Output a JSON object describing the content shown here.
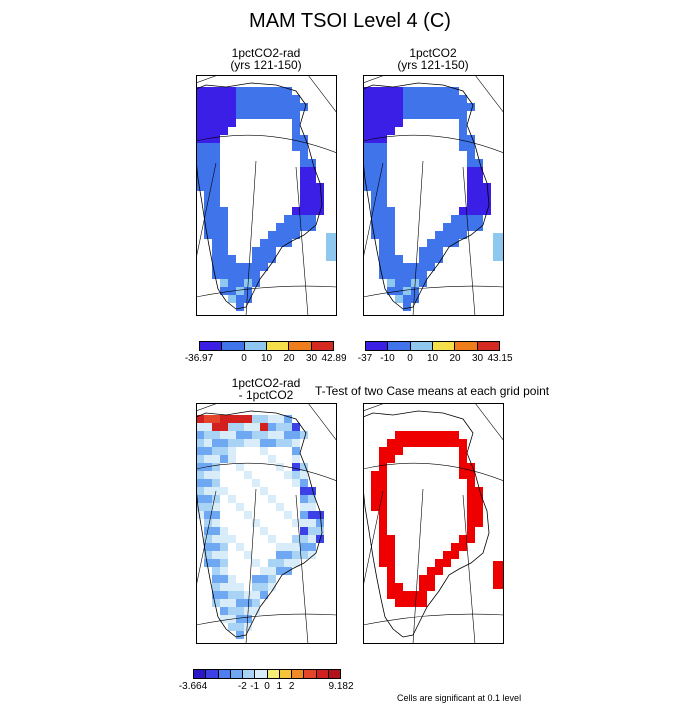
{
  "title": "MAM TSOI Level 4 (C)",
  "panels": [
    {
      "title_line1": "1pctCO2-rad",
      "title_line2": "(yrs 121-150)"
    },
    {
      "title_line1": "1pctCO2",
      "title_line2": "(yrs 121-150)"
    },
    {
      "title_line1": "1pctCO2-rad",
      "title_line2": "- 1pctCO2"
    },
    {
      "title_line1": "T-Test of two Case means at each grid point"
    }
  ],
  "colorbars": [
    {
      "labels": [
        "-36.97",
        "0",
        "10",
        "20",
        "30",
        "42.89"
      ],
      "colors": [
        "#3b1fe6",
        "#3f74ea",
        "#8fc8ef",
        "#f5df4a",
        "#f07d1c",
        "#d42a22"
      ]
    },
    {
      "labels": [
        "-37",
        "-10",
        "0",
        "10",
        "20",
        "30",
        "43.15"
      ],
      "colors": [
        "#3b1fe6",
        "#3f74ea",
        "#8fc8ef",
        "#f5df4a",
        "#f07d1c",
        "#d42a22"
      ]
    },
    {
      "labels": [
        "-3.664",
        "-2",
        "-1",
        "0",
        "1",
        "2",
        "9.182"
      ],
      "colors": [
        "#2b16c8",
        "#3b41e6",
        "#4f7ef0",
        "#6fa8f2",
        "#a9d3f5",
        "#d8ecfa",
        "#f5ef7a",
        "#f7c33a",
        "#f08a24",
        "#e5462a",
        "#d1201f",
        "#b3121b"
      ]
    }
  ],
  "note": "Cells are significant at 0.1 level",
  "colors": {
    "cold": "#3b1fe6",
    "mid_blue": "#3f74ea",
    "light_blue": "#8fc8ef",
    "significant": "#ee0000"
  }
}
